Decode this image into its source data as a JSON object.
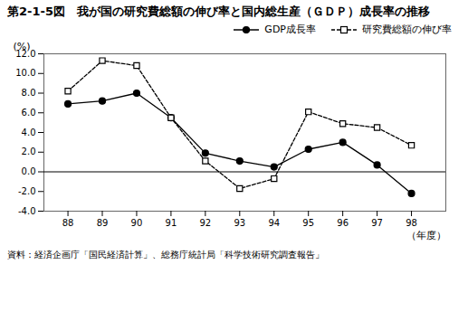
{
  "chart_data": {
    "type": "line",
    "title": "第2-1-5図　我が国の研究費総額の伸び率と国内総生産（ＧＤＰ）成長率の推移",
    "caption": "資料：経済企画庁「国民経済計算」、総務庁統計局「科学技術研究調査報告」",
    "x_label": "（年度）",
    "y_label": "(%)",
    "x": [
      88,
      89,
      90,
      91,
      92,
      93,
      94,
      95,
      96,
      97,
      98
    ],
    "series": [
      {
        "name": "GDP成長率",
        "color": "#000000",
        "marker": "circle",
        "line_style": "solid",
        "values": [
          6.9,
          7.2,
          8.0,
          5.5,
          1.9,
          1.1,
          0.5,
          2.3,
          3.0,
          0.7,
          -2.2
        ]
      },
      {
        "name": "研究費総額の伸び率",
        "color": "#000000",
        "marker": "square",
        "line_style": "dashed",
        "values": [
          8.2,
          11.3,
          10.8,
          5.5,
          1.1,
          -1.7,
          -0.7,
          6.1,
          4.9,
          4.5,
          2.7
        ]
      }
    ],
    "hline": 0.0,
    "xlim": [
      87.3,
      99.0
    ],
    "xticks": [
      88,
      89,
      90,
      91,
      92,
      93,
      94,
      95,
      96,
      97,
      98
    ],
    "ylim": [
      -4.0,
      12.0
    ],
    "yticks": [
      {
        "value": -4.0,
        "label": "-4.0"
      },
      {
        "value": -2.0,
        "label": "-2.0"
      },
      {
        "value": 0.0,
        "label": "0.0"
      },
      {
        "value": 2.0,
        "label": "2.0"
      },
      {
        "value": 4.0,
        "label": "4.0"
      },
      {
        "value": 6.0,
        "label": "6.0"
      },
      {
        "value": 8.0,
        "label": "8.0"
      },
      {
        "value": 10.0,
        "label": "10.0"
      },
      {
        "value": 12.0,
        "label": "12.0"
      }
    ],
    "grid": false,
    "legend": "upper right"
  }
}
